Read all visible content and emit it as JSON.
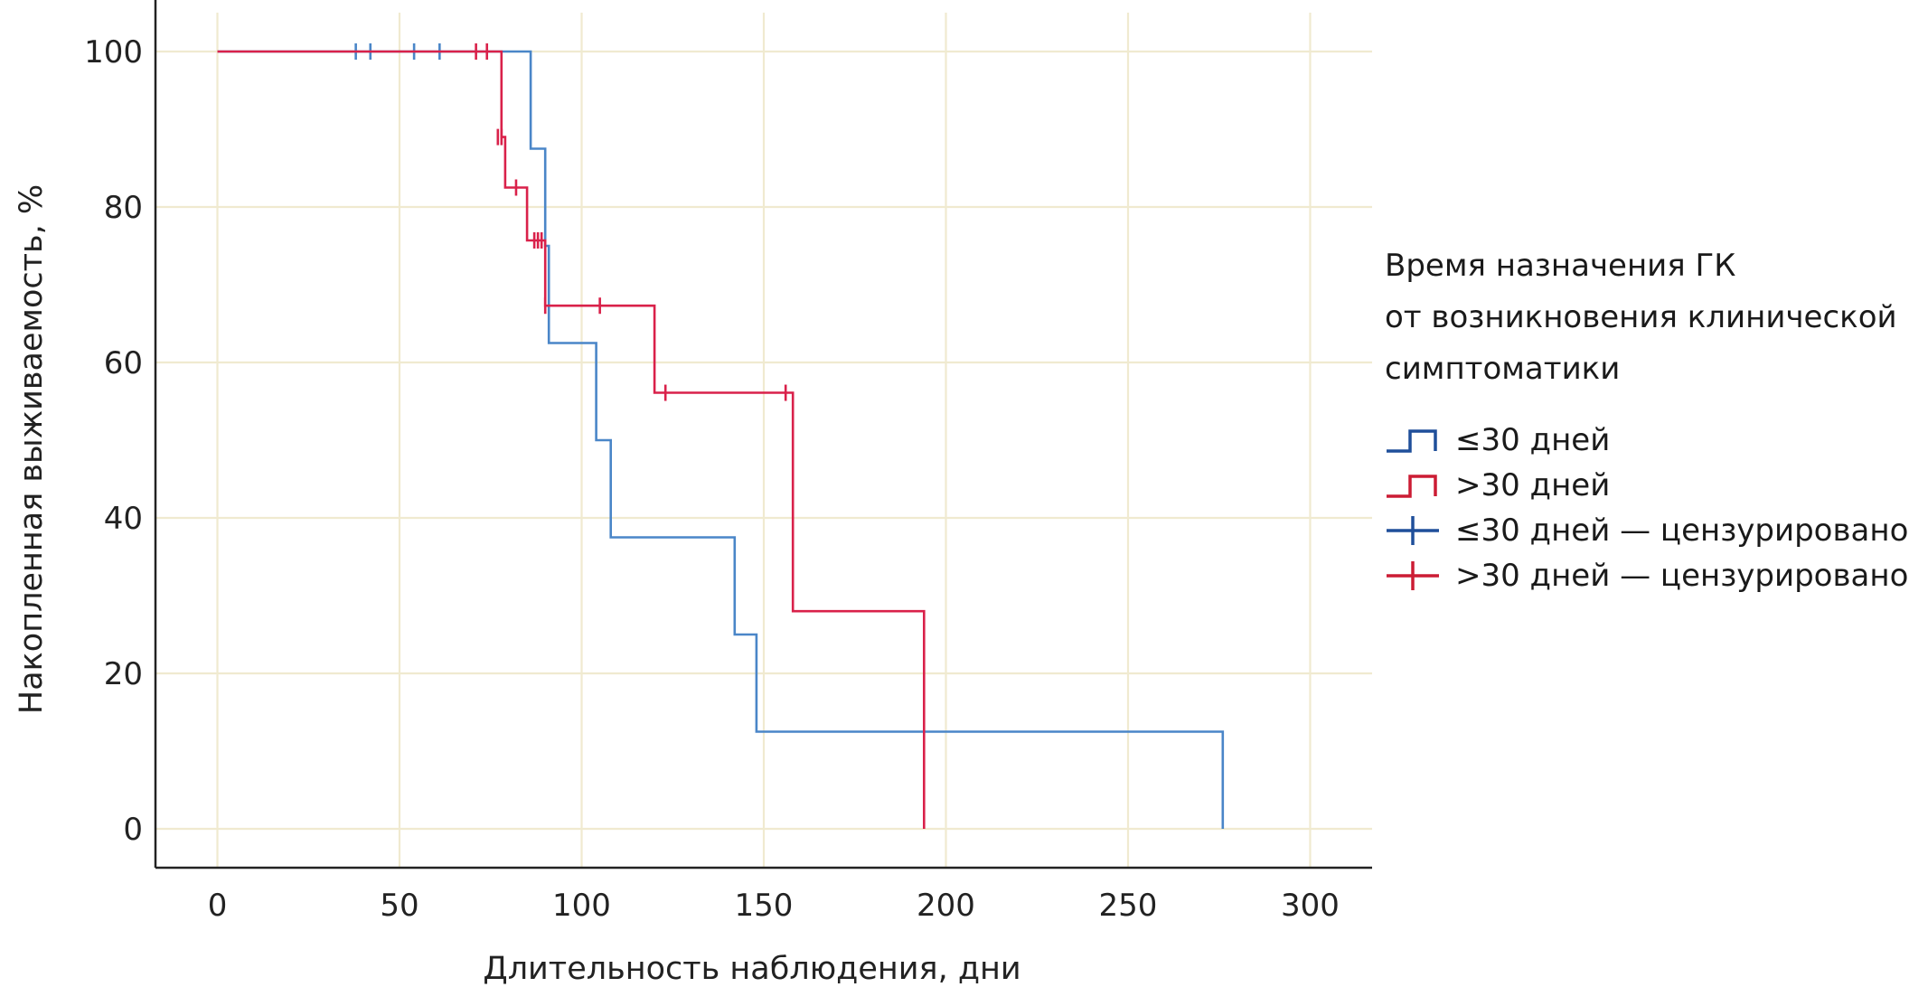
{
  "chart_data": {
    "type": "line",
    "subtype": "kaplan-meier-step",
    "title": "",
    "xlabel": "Длительность наблюдения, дни",
    "ylabel": "Накопленная выживаемость, %",
    "xlim": [
      -17,
      317
    ],
    "ylim": [
      -5,
      105
    ],
    "xticks": [
      0,
      50,
      100,
      150,
      200,
      250,
      300
    ],
    "yticks": [
      0,
      20,
      40,
      60,
      80,
      100
    ],
    "grid": true,
    "grid_color": "#f0ead0",
    "legend": {
      "title_lines": [
        "Время назначения ГК",
        "от возникновения клинической",
        "симптоматики"
      ],
      "placement": "right"
    },
    "series": [
      {
        "name": "≤30 дней",
        "censored_name": "≤30 дней — цензурировано",
        "color": "#4a86c8",
        "legend_color": "#1f4f9a",
        "steps": [
          [
            0,
            100
          ],
          [
            86,
            100
          ],
          [
            86,
            87.5
          ],
          [
            90,
            87.5
          ],
          [
            90,
            75
          ],
          [
            91,
            75
          ],
          [
            91,
            62.5
          ],
          [
            104,
            62.5
          ],
          [
            104,
            50
          ],
          [
            108,
            50
          ],
          [
            108,
            37.5
          ],
          [
            142,
            37.5
          ],
          [
            142,
            25
          ],
          [
            148,
            25
          ],
          [
            148,
            12.5
          ],
          [
            276,
            12.5
          ],
          [
            276,
            0
          ]
        ],
        "censored": [
          [
            38,
            100
          ],
          [
            42,
            100
          ],
          [
            54,
            100
          ],
          [
            61,
            100
          ]
        ]
      },
      {
        "name": ">30 дней",
        "censored_name": ">30 дней — цензурировано",
        "color": "#d9214a",
        "legend_color": "#cc1c34",
        "steps": [
          [
            0,
            100
          ],
          [
            78,
            100
          ],
          [
            78,
            89
          ],
          [
            79,
            89
          ],
          [
            79,
            82.5
          ],
          [
            85,
            82.5
          ],
          [
            85,
            75.7
          ],
          [
            90,
            75.7
          ],
          [
            90,
            67.3
          ],
          [
            120,
            67.3
          ],
          [
            120,
            56.1
          ],
          [
            158,
            56.1
          ],
          [
            158,
            28
          ],
          [
            194,
            28
          ],
          [
            194,
            0
          ]
        ],
        "censored": [
          [
            71,
            100
          ],
          [
            74,
            100
          ],
          [
            77,
            89
          ],
          [
            78,
            89
          ],
          [
            82,
            82.5
          ],
          [
            87,
            75.7
          ],
          [
            88,
            75.7
          ],
          [
            89,
            75.7
          ],
          [
            90,
            67.3
          ],
          [
            105,
            67.3
          ],
          [
            123,
            56.1
          ],
          [
            156,
            56.1
          ]
        ]
      }
    ]
  }
}
